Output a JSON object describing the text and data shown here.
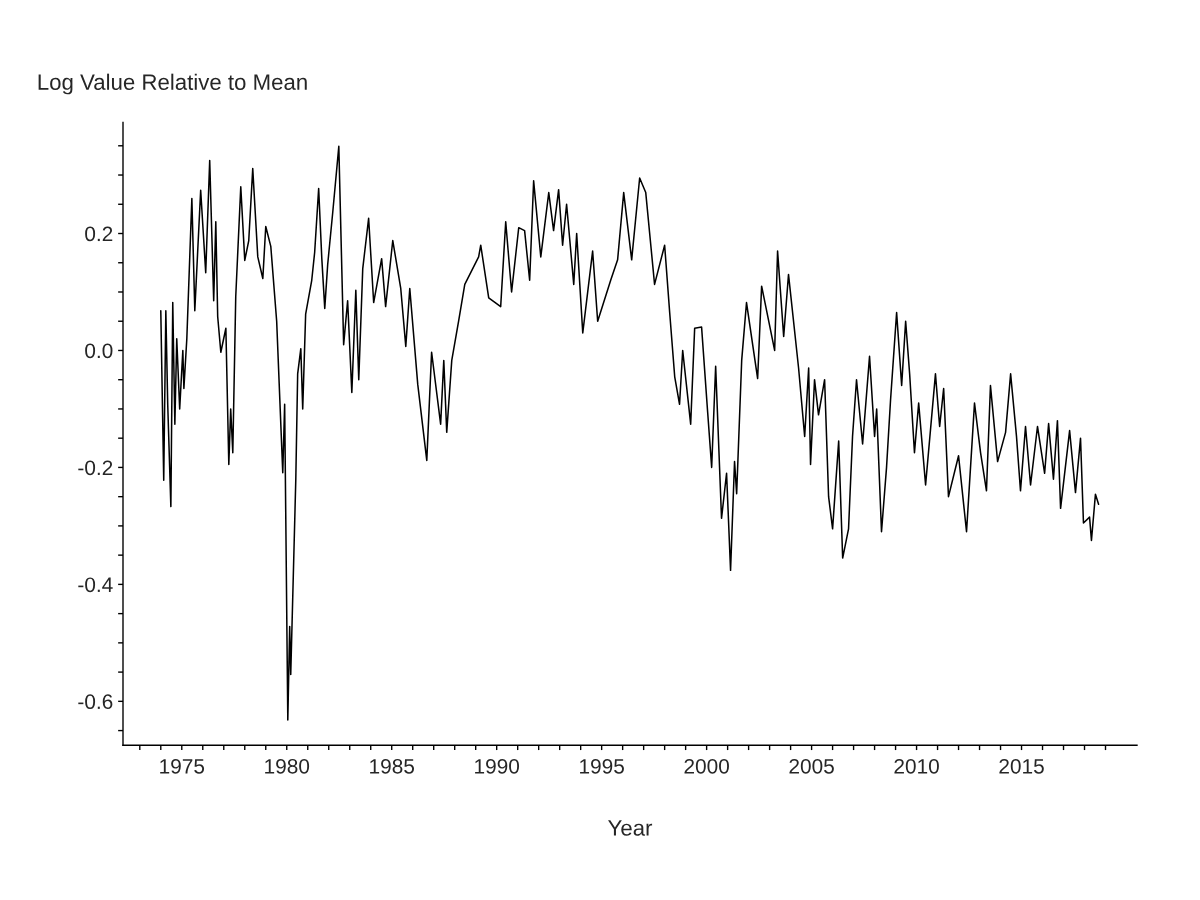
{
  "chart_data": {
    "type": "line",
    "ylabel": "Log Value Relative to Mean",
    "xlabel": "Year",
    "xlim": [
      1972.2,
      2020.5
    ],
    "ylim": [
      -0.675,
      0.39
    ],
    "xticks": [
      {
        "value": 1973,
        "label": null
      },
      {
        "value": 1974,
        "label": null
      },
      1975,
      {
        "value": 1976,
        "label": null
      },
      {
        "value": 1977,
        "label": null
      },
      {
        "value": 1978,
        "label": null
      },
      {
        "value": 1979,
        "label": null
      },
      1980,
      {
        "value": 1981,
        "label": null
      },
      {
        "value": 1982,
        "label": null
      },
      {
        "value": 1983,
        "label": null
      },
      {
        "value": 1984,
        "label": null
      },
      1985,
      {
        "value": 1986,
        "label": null
      },
      {
        "value": 1987,
        "label": null
      },
      {
        "value": 1988,
        "label": null
      },
      {
        "value": 1989,
        "label": null
      },
      1990,
      {
        "value": 1991,
        "label": null
      },
      {
        "value": 1992,
        "label": null
      },
      {
        "value": 1993,
        "label": null
      },
      {
        "value": 1994,
        "label": null
      },
      1995,
      {
        "value": 1996,
        "label": null
      },
      {
        "value": 1997,
        "label": null
      },
      {
        "value": 1998,
        "label": null
      },
      {
        "value": 1999,
        "label": null
      },
      2000,
      {
        "value": 2001,
        "label": null
      },
      {
        "value": 2002,
        "label": null
      },
      {
        "value": 2003,
        "label": null
      },
      {
        "value": 2004,
        "label": null
      },
      2005,
      {
        "value": 2006,
        "label": null
      },
      {
        "value": 2007,
        "label": null
      },
      {
        "value": 2008,
        "label": null
      },
      {
        "value": 2009,
        "label": null
      },
      2010,
      {
        "value": 2011,
        "label": null
      },
      {
        "value": 2012,
        "label": null
      },
      {
        "value": 2013,
        "label": null
      },
      {
        "value": 2014,
        "label": null
      },
      2015,
      {
        "value": 2016,
        "label": null
      },
      {
        "value": 2017,
        "label": null
      },
      {
        "value": 2018,
        "label": null
      },
      {
        "value": 2019,
        "label": null
      }
    ],
    "yticks": [
      {
        "value": -0.65,
        "label": null
      },
      -0.6,
      {
        "value": -0.55,
        "label": null
      },
      {
        "value": -0.5,
        "label": null
      },
      {
        "value": -0.45,
        "label": null
      },
      -0.4,
      {
        "value": -0.35,
        "label": null
      },
      {
        "value": -0.3,
        "label": null
      },
      {
        "value": -0.25,
        "label": null
      },
      -0.2,
      {
        "value": -0.15,
        "label": null
      },
      {
        "value": -0.1,
        "label": null
      },
      {
        "value": -0.05,
        "label": null
      },
      {
        "value": 0,
        "label": "0.0"
      },
      {
        "value": 0.05,
        "label": null
      },
      {
        "value": 0.1,
        "label": null
      },
      {
        "value": 0.15,
        "label": null
      },
      0.2,
      {
        "value": 0.25,
        "label": null
      },
      {
        "value": 0.3,
        "label": null
      },
      {
        "value": 0.35,
        "label": null
      }
    ],
    "grid": false,
    "legend": false,
    "series": [
      {
        "color": "#000000",
        "x": [
          1974.0,
          1974.14,
          1974.24,
          1974.33,
          1974.48,
          1974.57,
          1974.67,
          1974.76,
          1974.9,
          1975.05,
          1975.1,
          1975.24,
          1975.48,
          1975.62,
          1975.9,
          1976.14,
          1976.33,
          1976.52,
          1976.62,
          1976.71,
          1976.86,
          1977.1,
          1977.24,
          1977.33,
          1977.43,
          1977.57,
          1977.81,
          1978.0,
          1978.19,
          1978.38,
          1978.62,
          1978.86,
          1979.0,
          1979.24,
          1979.52,
          1979.81,
          1979.9,
          1980.05,
          1980.14,
          1980.19,
          1980.43,
          1980.52,
          1980.67,
          1980.76,
          1980.9,
          1981.19,
          1981.33,
          1981.52,
          1981.67,
          1981.81,
          1981.95,
          1982.19,
          1982.48,
          1982.71,
          1982.9,
          1983.1,
          1983.29,
          1983.43,
          1983.62,
          1983.9,
          1984.14,
          1984.52,
          1984.71,
          1985.05,
          1985.43,
          1985.67,
          1985.86,
          1986.24,
          1986.67,
          1986.9,
          1987.33,
          1987.48,
          1987.62,
          1987.86,
          1988.19,
          1988.48,
          1989.14,
          1989.24,
          1989.62,
          1990.19,
          1990.43,
          1990.71,
          1991.05,
          1991.33,
          1991.57,
          1991.76,
          1992.1,
          1992.48,
          1992.71,
          1992.95,
          1993.14,
          1993.33,
          1993.67,
          1993.81,
          1994.1,
          1994.57,
          1994.81,
          1995.43,
          1995.76,
          1996.05,
          1996.43,
          1996.81,
          1997.1,
          1997.52,
          1998.0,
          1998.24,
          1998.48,
          1998.71,
          1998.86,
          1999.24,
          1999.43,
          1999.76,
          2000.05,
          2000.24,
          2000.43,
          2000.71,
          2000.95,
          2001.14,
          2001.33,
          2001.43,
          2001.67,
          2001.9,
          2002.43,
          2002.62,
          2003.24,
          2003.38,
          2003.67,
          2003.9,
          2004.38,
          2004.67,
          2004.86,
          2004.95,
          2005.14,
          2005.33,
          2005.62,
          2005.81,
          2006.0,
          2006.29,
          2006.48,
          2006.76,
          2006.95,
          2007.14,
          2007.43,
          2007.76,
          2008.0,
          2008.1,
          2008.33,
          2008.57,
          2008.76,
          2009.05,
          2009.29,
          2009.48,
          2009.67,
          2009.9,
          2010.1,
          2010.43,
          2010.9,
          2011.1,
          2011.29,
          2011.52,
          2012.0,
          2012.38,
          2012.76,
          2013.05,
          2013.33,
          2013.52,
          2013.86,
          2014.24,
          2014.48,
          2014.76,
          2014.95,
          2015.19,
          2015.43,
          2015.76,
          2016.1,
          2016.29,
          2016.52,
          2016.71,
          2016.86,
          2017.29,
          2017.57,
          2017.81,
          2017.95,
          2018.24,
          2018.33,
          2018.52,
          2018.67
        ],
        "values": [
          0.068,
          -0.222,
          0.068,
          -0.092,
          -0.267,
          0.082,
          -0.126,
          0.02,
          -0.1,
          0.0,
          -0.065,
          0.02,
          0.26,
          0.068,
          0.274,
          0.133,
          0.325,
          0.085,
          0.22,
          0.058,
          -0.003,
          0.038,
          -0.195,
          -0.1,
          -0.175,
          0.092,
          0.28,
          0.154,
          0.188,
          0.311,
          0.16,
          0.123,
          0.212,
          0.178,
          0.05,
          -0.209,
          -0.092,
          -0.632,
          -0.472,
          -0.554,
          -0.222,
          -0.04,
          0.003,
          -0.1,
          0.062,
          0.12,
          0.168,
          0.277,
          0.157,
          0.072,
          0.147,
          0.236,
          0.349,
          0.01,
          0.085,
          -0.072,
          0.103,
          -0.05,
          0.14,
          0.226,
          0.082,
          0.157,
          0.075,
          0.188,
          0.106,
          0.007,
          0.106,
          -0.058,
          -0.188,
          -0.003,
          -0.126,
          -0.017,
          -0.14,
          -0.017,
          0.051,
          0.113,
          0.16,
          0.18,
          0.09,
          0.075,
          0.22,
          0.1,
          0.21,
          0.205,
          0.12,
          0.29,
          0.16,
          0.27,
          0.205,
          0.275,
          0.18,
          0.25,
          0.113,
          0.2,
          0.03,
          0.17,
          0.05,
          0.12,
          0.155,
          0.27,
          0.155,
          0.295,
          0.27,
          0.113,
          0.18,
          0.065,
          -0.045,
          -0.092,
          0.0,
          -0.126,
          0.038,
          0.04,
          -0.106,
          -0.2,
          -0.027,
          -0.287,
          -0.21,
          -0.376,
          -0.19,
          -0.245,
          -0.017,
          0.082,
          -0.048,
          0.11,
          0.0,
          0.17,
          0.024,
          0.13,
          -0.03,
          -0.147,
          -0.03,
          -0.195,
          -0.05,
          -0.11,
          -0.05,
          -0.25,
          -0.305,
          -0.155,
          -0.355,
          -0.305,
          -0.147,
          -0.05,
          -0.16,
          -0.01,
          -0.147,
          -0.1,
          -0.31,
          -0.2,
          -0.085,
          0.065,
          -0.06,
          0.05,
          -0.04,
          -0.175,
          -0.09,
          -0.23,
          -0.04,
          -0.13,
          -0.065,
          -0.25,
          -0.18,
          -0.31,
          -0.09,
          -0.175,
          -0.24,
          -0.06,
          -0.19,
          -0.14,
          -0.04,
          -0.147,
          -0.24,
          -0.13,
          -0.23,
          -0.13,
          -0.21,
          -0.125,
          -0.22,
          -0.12,
          -0.27,
          -0.137,
          -0.243,
          -0.15,
          -0.295,
          -0.285,
          -0.325,
          -0.246,
          -0.263
        ]
      }
    ]
  }
}
